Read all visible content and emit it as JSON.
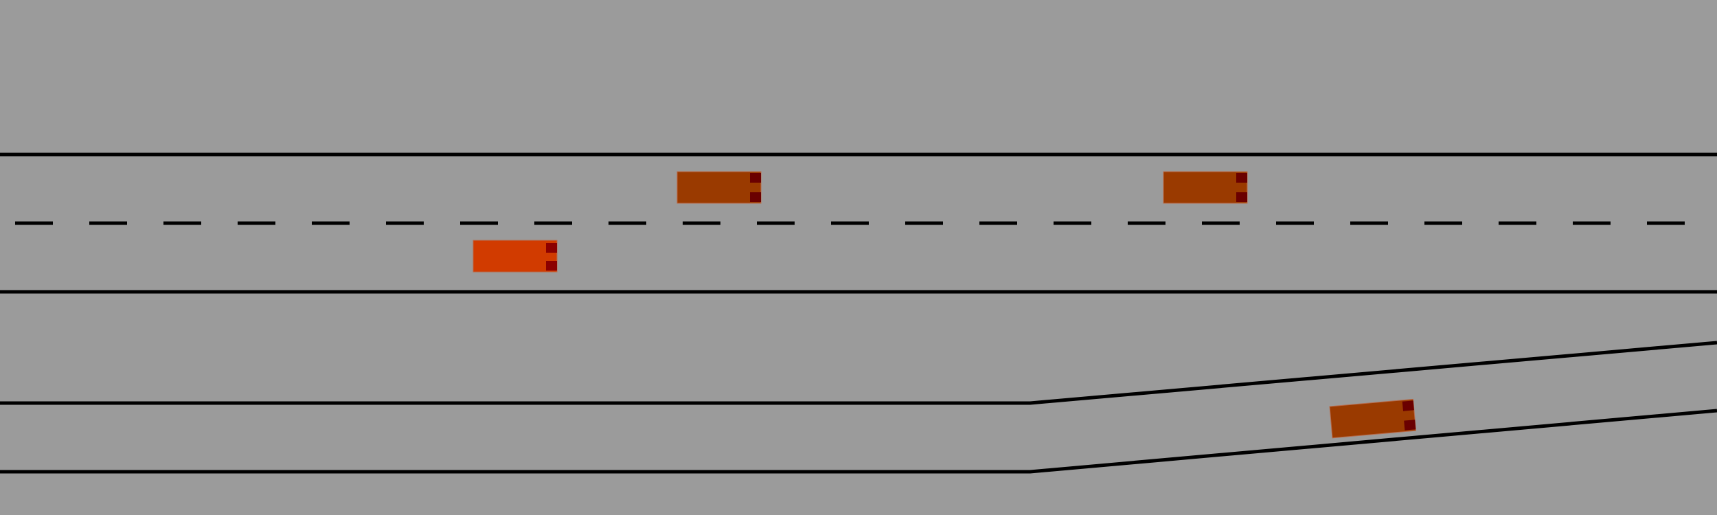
{
  "scene": {
    "background_color": "#9b9b9b",
    "line_color": "#000000"
  },
  "road_lines": [
    {
      "name": "highway-top-edge",
      "style": "solid"
    },
    {
      "name": "highway-center-lane-divider",
      "style": "dashed"
    },
    {
      "name": "highway-bottom-edge",
      "style": "solid"
    },
    {
      "name": "ramp-upper-edge",
      "style": "solid"
    },
    {
      "name": "ramp-lower-edge",
      "style": "solid"
    }
  ],
  "vehicles": [
    {
      "name": "vehicle-ego",
      "role": "ego",
      "body_color": "#d13b00",
      "light_color": "#8b0000"
    },
    {
      "name": "vehicle-upper-lane-1",
      "role": "traffic",
      "body_color": "#9a3a00",
      "light_color": "#6a0000"
    },
    {
      "name": "vehicle-upper-lane-2",
      "role": "traffic",
      "body_color": "#9a3a00",
      "light_color": "#6a0000"
    },
    {
      "name": "vehicle-ramp",
      "role": "traffic",
      "body_color": "#9a3a00",
      "light_color": "#6a0000"
    }
  ]
}
